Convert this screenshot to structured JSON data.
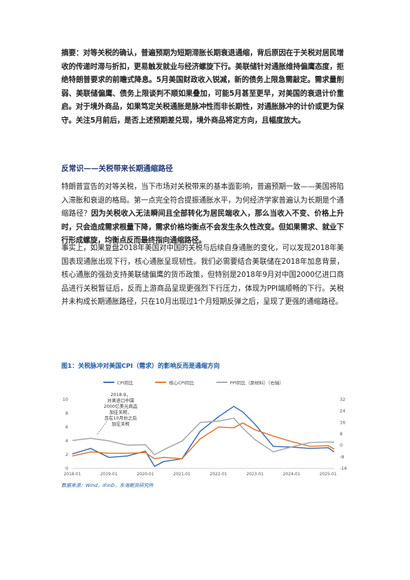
{
  "abstract": {
    "label": "摘要：",
    "text": "对等关税的确认，普遍预期为短期滞胀长期衰退通缩，背后原因在于关税对居民增收的传递时滞与折扣，更易触发就业与经济螺旋下行。美联储针对通胀维持偏鹰态度，拒绝特朗普要求的前瞻式降息。5月美国财政收入锐减，新的债务上限急需敲定。需求量削弱、美联储偏鹰、债务上限谈判不顺如果叠加，可能5月甚至更早，对美国的衰退计价重启。对于境外商品，如果笃定关税通胀是脉冲性而非长期性，对通胀脉冲的计价或更为保守。关注5月前后，是否上述预期差兑现，境外商品将定方向，且幅度放大。"
  },
  "section_heading": "反常识——关税带来长期通缩路径",
  "para1": {
    "normal": "特朗普宣告的对等关税，当下市场对关税带来的基本面影响，普遍预期一致——美国将陷入滞胀和衰退的格局。第一点完全符合提振通胀水平，为何经济学家普遍认为长期是个通缩路径？",
    "bold": "因为关税收入无法瞬间且全部转化为居民端收入，那么当收入不变、价格上升时，只会造成需求根量下降，需求价格均衡点不会发生永久性改变。但如果需求、就业下行形成螺旋，均衡点反而最终指向通缩路径。"
  },
  "para2": "事实上，如果复盘2018年美国对中国的关税与后续自身通胀的变化，可以发现2018年美国表现通胀出现下行，核心通胀呈现韧性。我们必需要结合美联储在2018年加息背景，核心通胀的强劲支持美联储偏鹰的货币政策，但特别是2018年9月对中国2000亿进口商品进行关税暂征后，反而上游商品呈现更强烈下行压力，体现为PPI端顺畅的下行。关税并未构成长期通胀路径，只在10月出现过1个月短期反弹之后，呈现了更强的通缩路径。",
  "figure": {
    "title": "图1：关税脉冲对美国CPI（需求）的影响反而是通缩方向",
    "source": "数据来源：Wind，iFinD，东海期货研究所"
  },
  "chart_data": {
    "type": "line",
    "title": "",
    "x": [
      "2018-01",
      "2018-07",
      "2019-01",
      "2019-07",
      "2020-01",
      "2020-04",
      "2020-07",
      "2021-01",
      "2021-07",
      "2022-01",
      "2022-06",
      "2022-09",
      "2023-01",
      "2023-07",
      "2024-01",
      "2024-07",
      "2025-01",
      "2025-03"
    ],
    "x_ticks": [
      "2018-01",
      "2019-01",
      "2020-01",
      "2021-01",
      "2022-01",
      "2023-01",
      "2024-01",
      "2025-01"
    ],
    "y_left_ticks": [
      "0",
      "2",
      "4",
      "6",
      "8",
      "10"
    ],
    "y_left_range": [
      0,
      10
    ],
    "y_right_ticks": [
      "-16",
      "-8",
      "0",
      "8",
      "16",
      "24",
      "32"
    ],
    "y_right_range": [
      -16,
      32
    ],
    "series": [
      {
        "name": "CPI同比",
        "color": "#3d6fb6",
        "axis": "left",
        "values": [
          2.1,
          2.9,
          1.6,
          1.8,
          2.5,
          0.3,
          1.0,
          1.4,
          5.4,
          7.5,
          9.0,
          8.2,
          6.4,
          3.2,
          3.1,
          2.9,
          3.0,
          2.4
        ]
      },
      {
        "name": "核心CPI同比",
        "color": "#e0782f",
        "axis": "left",
        "values": [
          1.8,
          2.4,
          2.2,
          2.2,
          2.3,
          1.4,
          1.6,
          1.4,
          4.3,
          6.0,
          5.9,
          6.6,
          5.6,
          4.7,
          3.9,
          3.2,
          3.3,
          2.8
        ]
      },
      {
        "name": "PPI同比（原材料）（右轴）",
        "color": "#a8a8a8",
        "axis": "right",
        "values": [
          3.5,
          5.0,
          3.2,
          0.2,
          0.5,
          -6.5,
          -3.0,
          3.0,
          16.0,
          17.0,
          19.0,
          12.0,
          4.0,
          -4.5,
          -1.0,
          2.0,
          2.5,
          2.2
        ]
      }
    ],
    "annotation": "2018.9，\n对美进口中国\n2000亿美元商品\n加征关税，\n且在10月份之后\n加征关税"
  }
}
